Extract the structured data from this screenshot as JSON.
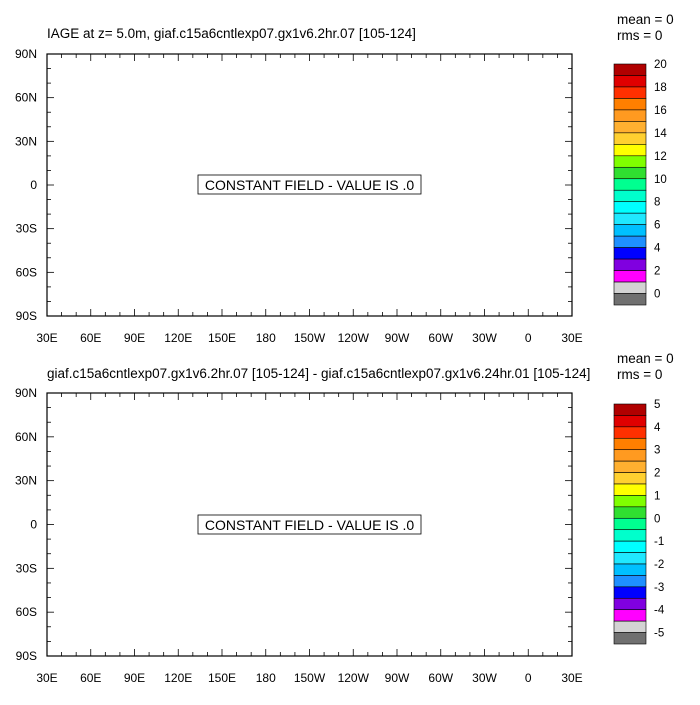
{
  "panels": [
    {
      "title": "IAGE at z=   5.0m, giaf.c15a6cntlexp07.gx1v6.2hr.07 [105-124]",
      "stats": {
        "mean": "mean = 0",
        "rms": "rms = 0"
      },
      "constant_message": "CONSTANT FIELD - VALUE IS .0",
      "colorbar_labels": [
        "20",
        "18",
        "16",
        "14",
        "12",
        "10",
        "8",
        "6",
        "4",
        "2",
        "0"
      ]
    },
    {
      "title": "giaf.c15a6cntlexp07.gx1v6.2hr.07 [105-124] - giaf.c15a6cntlexp07.gx1v6.24hr.01 [105-124]",
      "stats": {
        "mean": "mean = 0",
        "rms": "rms = 0"
      },
      "constant_message": "CONSTANT FIELD - VALUE IS .0",
      "colorbar_labels": [
        "5",
        "4",
        "3",
        "2",
        "1",
        "0",
        "-1",
        "-2",
        "-3",
        "-4",
        "-5"
      ]
    }
  ],
  "chart_data": [
    {
      "type": "heatmap",
      "title": "IAGE at z=   5.0m, giaf.c15a6cntlexp07.gx1v6.2hr.07 [105-124]",
      "x_tick_labels": [
        "30E",
        "60E",
        "90E",
        "120E",
        "150E",
        "180",
        "150W",
        "120W",
        "90W",
        "60W",
        "30W",
        "0",
        "30E"
      ],
      "y_tick_labels": [
        "90N",
        "60N",
        "30N",
        "0",
        "30S",
        "60S",
        "90S"
      ],
      "x_range_deg_east": [
        30,
        390
      ],
      "y_range_deg_north": [
        -90,
        90
      ],
      "value": 0,
      "mean": 0,
      "rms": 0,
      "colorbar": {
        "labels": [
          "20",
          "18",
          "16",
          "14",
          "12",
          "10",
          "8",
          "6",
          "4",
          "2",
          "0"
        ],
        "colors": [
          "#B00000",
          "#E00000",
          "#FF3000",
          "#FF7F00",
          "#FF9A20",
          "#FFB030",
          "#FFD030",
          "#FFFF00",
          "#80FF00",
          "#30DF30",
          "#00FF90",
          "#00FFCC",
          "#00FFFF",
          "#20E8FF",
          "#00C0FF",
          "#1E90FF",
          "#0000FF",
          "#8000E0",
          "#FF00FF",
          "#D3D3D3",
          "#707070"
        ]
      }
    },
    {
      "type": "heatmap",
      "title": "giaf.c15a6cntlexp07.gx1v6.2hr.07 [105-124] - giaf.c15a6cntlexp07.gx1v6.24hr.01 [105-124]",
      "x_tick_labels": [
        "30E",
        "60E",
        "90E",
        "120E",
        "150E",
        "180",
        "150W",
        "120W",
        "90W",
        "60W",
        "30W",
        "0",
        "30E"
      ],
      "y_tick_labels": [
        "90N",
        "60N",
        "30N",
        "0",
        "30S",
        "60S",
        "90S"
      ],
      "x_range_deg_east": [
        30,
        390
      ],
      "y_range_deg_north": [
        -90,
        90
      ],
      "value": 0,
      "mean": 0,
      "rms": 0,
      "colorbar": {
        "labels": [
          "5",
          "4",
          "3",
          "2",
          "1",
          "0",
          "-1",
          "-2",
          "-3",
          "-4",
          "-5"
        ],
        "colors": [
          "#B00000",
          "#E00000",
          "#FF3000",
          "#FF7F00",
          "#FF9A20",
          "#FFB030",
          "#FFD030",
          "#FFFF00",
          "#80FF00",
          "#30DF30",
          "#00FF90",
          "#00FFCC",
          "#00FFFF",
          "#20E8FF",
          "#00C0FF",
          "#1E90FF",
          "#0000FF",
          "#8000E0",
          "#FF00FF",
          "#D3D3D3",
          "#707070"
        ]
      }
    }
  ]
}
